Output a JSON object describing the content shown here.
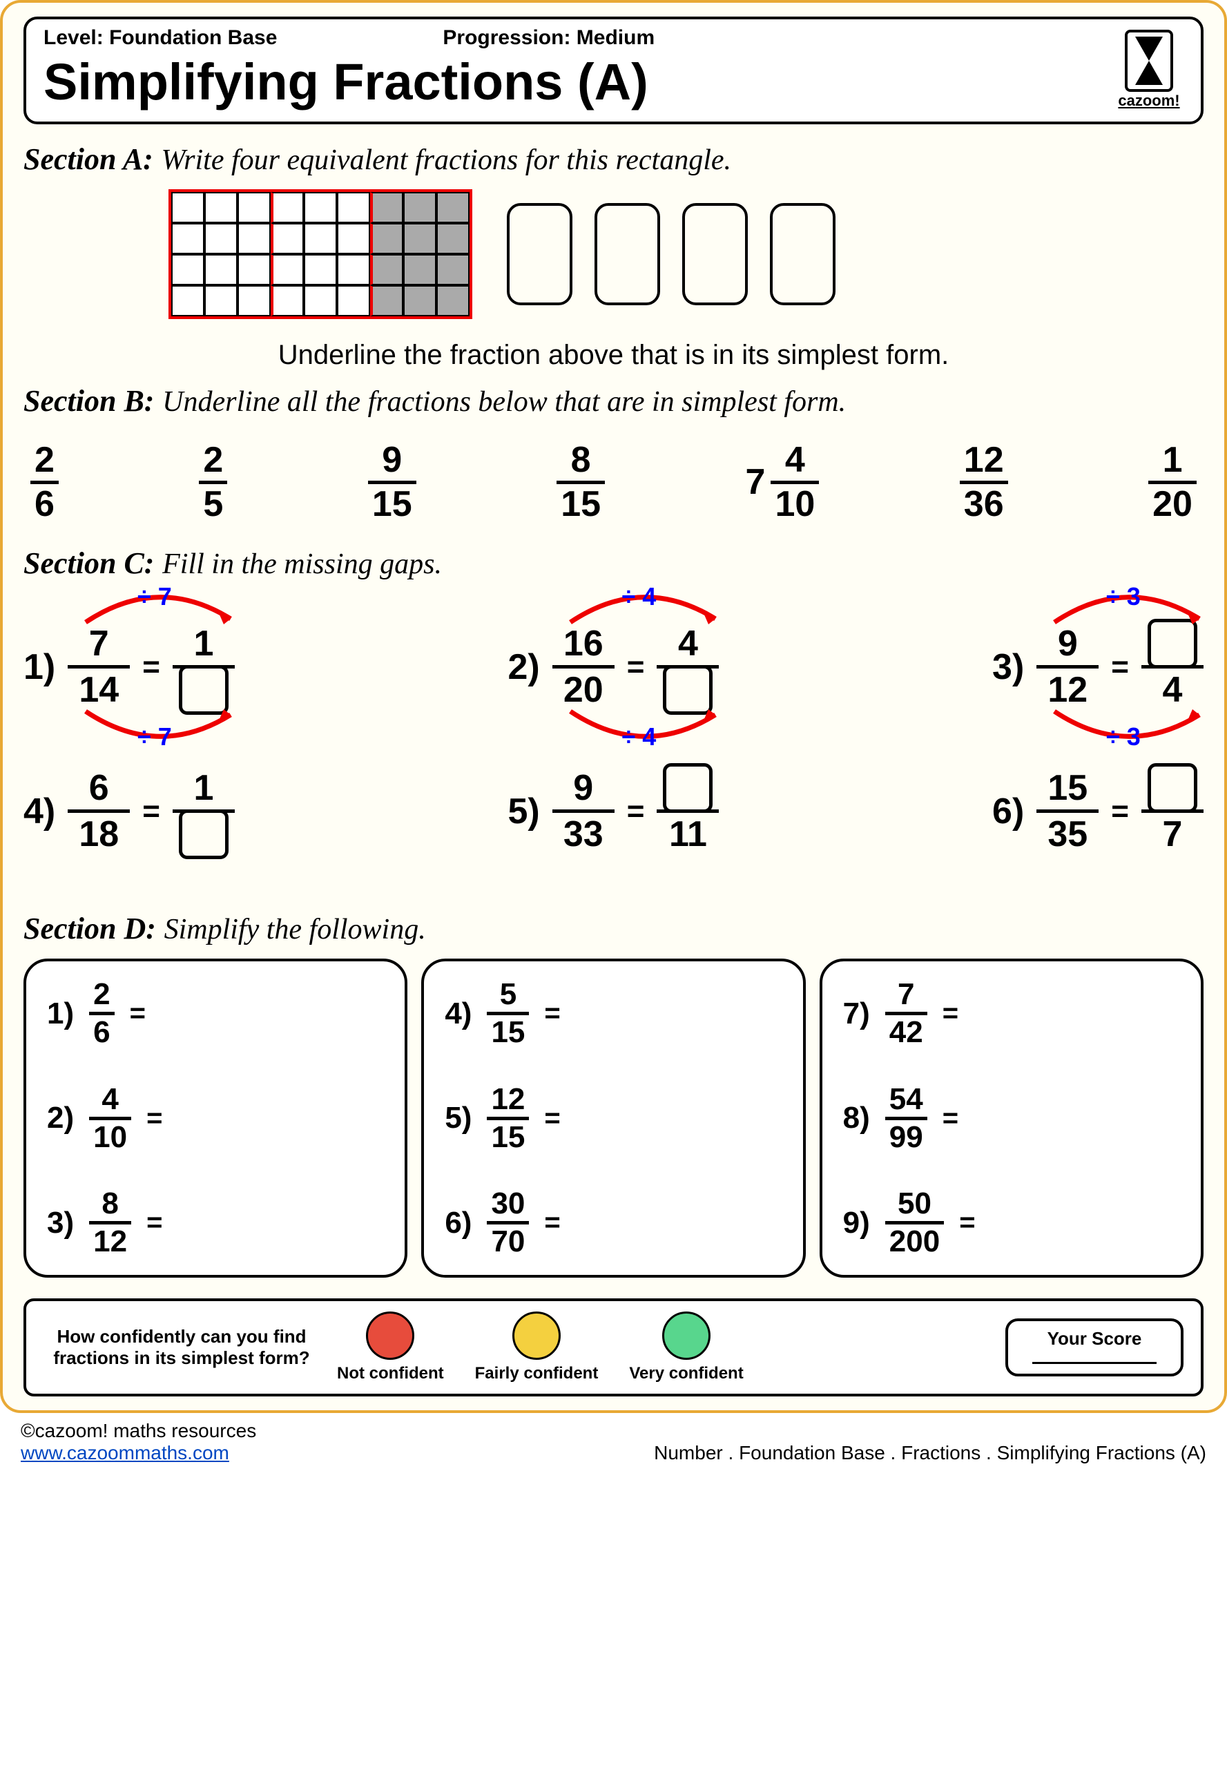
{
  "header": {
    "level_label": "Level:",
    "level_value": "Foundation Base",
    "progression_label": "Progression:",
    "progression_value": "Medium",
    "title": "Simplifying Fractions (A)",
    "logo_text": "cazoom!"
  },
  "sectionA": {
    "label": "Section A:",
    "instruction": "Write four equivalent fractions for this rectangle.",
    "grid": {
      "cols": 9,
      "rows": 4,
      "shaded_from_col": 6,
      "red_divider_cols": [
        3,
        6
      ]
    },
    "answer_box_count": 4,
    "note": "Underline the fraction above that is in its simplest form."
  },
  "sectionB": {
    "label": "Section B:",
    "instruction": "Underline all the fractions below that are in simplest form.",
    "fractions": [
      {
        "n": "2",
        "d": "6"
      },
      {
        "n": "2",
        "d": "5"
      },
      {
        "n": "9",
        "d": "15"
      },
      {
        "n": "8",
        "d": "15"
      },
      {
        "whole": "7",
        "n": "4",
        "d": "10"
      },
      {
        "n": "12",
        "d": "36"
      },
      {
        "n": "1",
        "d": "20"
      }
    ]
  },
  "sectionC": {
    "label": "Section C:",
    "instruction": "Fill in the missing gaps.",
    "row1": [
      {
        "num": "1)",
        "lhs": {
          "n": "7",
          "d": "14"
        },
        "rhs": {
          "n": "1",
          "d": "□"
        },
        "div": "7"
      },
      {
        "num": "2)",
        "lhs": {
          "n": "16",
          "d": "20"
        },
        "rhs": {
          "n": "4",
          "d": "□"
        },
        "div": "4"
      },
      {
        "num": "3)",
        "lhs": {
          "n": "9",
          "d": "12"
        },
        "rhs": {
          "n": "□",
          "d": "4"
        },
        "div": "3"
      }
    ],
    "row2": [
      {
        "num": "4)",
        "lhs": {
          "n": "6",
          "d": "18"
        },
        "rhs": {
          "n": "1",
          "d": "□"
        }
      },
      {
        "num": "5)",
        "lhs": {
          "n": "9",
          "d": "33"
        },
        "rhs": {
          "n": "□",
          "d": "11"
        }
      },
      {
        "num": "6)",
        "lhs": {
          "n": "15",
          "d": "35"
        },
        "rhs": {
          "n": "□",
          "d": "7"
        }
      }
    ]
  },
  "sectionD": {
    "label": "Section D:",
    "instruction": "Simplify the following.",
    "cols": [
      [
        {
          "num": "1)",
          "n": "2",
          "d": "6"
        },
        {
          "num": "2)",
          "n": "4",
          "d": "10"
        },
        {
          "num": "3)",
          "n": "8",
          "d": "12"
        }
      ],
      [
        {
          "num": "4)",
          "n": "5",
          "d": "15"
        },
        {
          "num": "5)",
          "n": "12",
          "d": "15"
        },
        {
          "num": "6)",
          "n": "30",
          "d": "70"
        }
      ],
      [
        {
          "num": "7)",
          "n": "7",
          "d": "42"
        },
        {
          "num": "8)",
          "n": "54",
          "d": "99"
        },
        {
          "num": "9)",
          "n": "50",
          "d": "200"
        }
      ]
    ]
  },
  "confidence": {
    "question": "How confidently can you find fractions in its simplest form?",
    "levels": [
      {
        "label": "Not confident",
        "color": "#e74c3c"
      },
      {
        "label": "Fairly confident",
        "color": "#f4d03f"
      },
      {
        "label": "Very confident",
        "color": "#58d68d"
      }
    ],
    "score_label": "Your Score"
  },
  "footer": {
    "copyright": "©cazoom! maths resources",
    "url": "www.cazoommaths.com",
    "breadcrumb": [
      "Number",
      ".",
      "Foundation Base",
      ".",
      "Fractions .",
      "Simplifying Fractions (A)"
    ]
  },
  "styling": {
    "page_bg": "#fffef5",
    "page_border": "#e8a935",
    "arrow_color": "#e00",
    "div_label_color": "#00f"
  }
}
